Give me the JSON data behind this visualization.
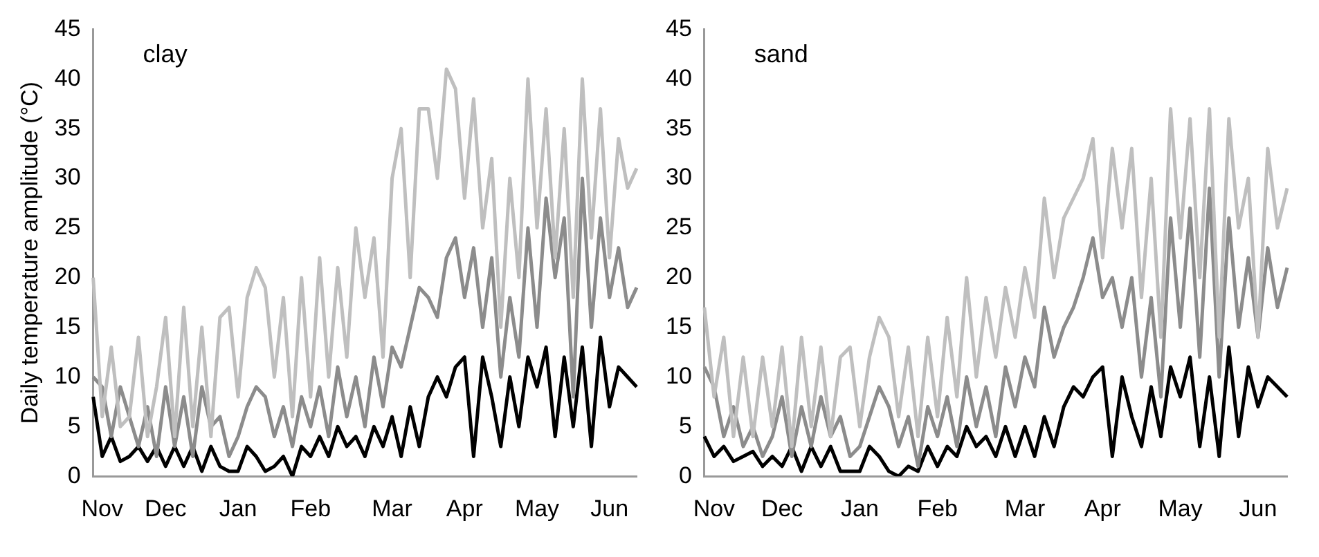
{
  "chart_data": [
    {
      "type": "line",
      "annotations": [
        "clay"
      ],
      "ylabel": "Daily temperature amplitude (°C)",
      "categories": [
        null,
        "Nov",
        null,
        null,
        null,
        null,
        null,
        null,
        "Dec",
        null,
        null,
        null,
        null,
        null,
        null,
        null,
        "Jan",
        null,
        null,
        null,
        null,
        null,
        null,
        null,
        "Feb",
        null,
        null,
        null,
        null,
        null,
        null,
        null,
        null,
        "Mar",
        null,
        null,
        null,
        null,
        null,
        null,
        null,
        "Apr",
        null,
        null,
        null,
        null,
        null,
        null,
        null,
        "May",
        null,
        null,
        null,
        null,
        null,
        null,
        null,
        "Jun",
        null,
        null,
        null
      ],
      "ylim": [
        0,
        45
      ],
      "yticks": [
        0,
        5,
        10,
        15,
        20,
        25,
        30,
        35,
        40,
        45
      ],
      "grid": false,
      "legend": false,
      "marker": "none",
      "line_style": "solid",
      "series": [
        {
          "color": "#bfbfbf",
          "values": [
            20,
            6,
            13,
            5,
            6,
            14,
            4,
            9,
            16,
            4,
            17,
            5,
            15,
            4,
            16,
            17,
            8,
            18,
            21,
            19,
            10,
            18,
            6,
            20,
            8,
            22,
            10,
            21,
            12,
            25,
            18,
            24,
            12,
            30,
            35,
            20,
            37,
            37,
            30,
            41,
            39,
            28,
            38,
            25,
            32,
            15,
            30,
            20,
            40,
            25,
            37,
            22,
            35,
            18,
            40,
            24,
            37,
            22,
            34,
            29,
            31
          ]
        },
        {
          "color": "#8c8c8c",
          "values": [
            10,
            9,
            4,
            9,
            6,
            3,
            7,
            2,
            9,
            3,
            8,
            2,
            9,
            5,
            6,
            2,
            4,
            7,
            9,
            8,
            4,
            7,
            3,
            8,
            5,
            9,
            4,
            11,
            6,
            10,
            5,
            12,
            7,
            13,
            11,
            15,
            19,
            18,
            16,
            22,
            24,
            18,
            23,
            15,
            22,
            10,
            18,
            12,
            25,
            15,
            28,
            20,
            26,
            8,
            30,
            15,
            26,
            18,
            23,
            17,
            19
          ]
        },
        {
          "color": "#000000",
          "values": [
            8,
            2,
            4,
            1.5,
            2,
            3,
            1.5,
            3,
            1,
            3,
            1,
            3,
            0.5,
            3,
            1,
            0.5,
            0.5,
            3,
            2,
            0.5,
            1,
            2,
            0,
            3,
            2,
            4,
            2,
            5,
            3,
            4,
            2,
            5,
            3,
            6,
            2,
            7,
            3,
            8,
            10,
            8,
            11,
            12,
            2,
            12,
            8,
            3,
            10,
            5,
            12,
            9,
            13,
            4,
            12,
            5,
            13,
            3,
            14,
            7,
            11,
            10,
            9
          ]
        }
      ]
    },
    {
      "type": "line",
      "annotations": [
        "sand"
      ],
      "categories": [
        null,
        "Nov",
        null,
        null,
        null,
        null,
        null,
        null,
        "Dec",
        null,
        null,
        null,
        null,
        null,
        null,
        null,
        "Jan",
        null,
        null,
        null,
        null,
        null,
        null,
        null,
        "Feb",
        null,
        null,
        null,
        null,
        null,
        null,
        null,
        null,
        "Mar",
        null,
        null,
        null,
        null,
        null,
        null,
        null,
        "Apr",
        null,
        null,
        null,
        null,
        null,
        null,
        null,
        "May",
        null,
        null,
        null,
        null,
        null,
        null,
        null,
        "Jun",
        null,
        null,
        null
      ],
      "ylim": [
        0,
        45
      ],
      "yticks": [
        0,
        5,
        10,
        15,
        20,
        25,
        30,
        35,
        40,
        45
      ],
      "grid": false,
      "legend": false,
      "marker": "none",
      "line_style": "solid",
      "series": [
        {
          "color": "#bfbfbf",
          "values": [
            17,
            8,
            14,
            4,
            12,
            4,
            12,
            5,
            13,
            3,
            14,
            5,
            13,
            4,
            12,
            13,
            5,
            12,
            16,
            14,
            6,
            13,
            4,
            14,
            6,
            16,
            8,
            20,
            10,
            18,
            12,
            19,
            14,
            21,
            16,
            28,
            20,
            26,
            28,
            30,
            34,
            22,
            33,
            25,
            33,
            18,
            30,
            14,
            37,
            24,
            36,
            20,
            37,
            14,
            36,
            25,
            30,
            14,
            33,
            25,
            29
          ]
        },
        {
          "color": "#8c8c8c",
          "values": [
            11,
            9,
            4,
            7,
            3,
            5,
            2,
            4,
            8,
            2,
            7,
            3,
            8,
            4,
            6,
            2,
            3,
            6,
            9,
            7,
            3,
            6,
            1,
            7,
            4,
            8,
            3,
            10,
            5,
            9,
            4,
            11,
            7,
            12,
            9,
            17,
            12,
            15,
            17,
            20,
            24,
            18,
            20,
            15,
            20,
            10,
            18,
            8,
            26,
            15,
            27,
            12,
            29,
            10,
            26,
            15,
            22,
            14,
            23,
            17,
            21
          ]
        },
        {
          "color": "#000000",
          "values": [
            4,
            2,
            3,
            1.5,
            2,
            2.5,
            1,
            2,
            1,
            3,
            0.5,
            3,
            1,
            3,
            0.5,
            0.5,
            0.5,
            3,
            2,
            0.5,
            0,
            1,
            0.5,
            3,
            1,
            3,
            2,
            5,
            3,
            4,
            2,
            5,
            2,
            5,
            2,
            6,
            3,
            7,
            9,
            8,
            10,
            11,
            2,
            10,
            6,
            3,
            9,
            4,
            11,
            8,
            12,
            3,
            10,
            2,
            13,
            4,
            11,
            7,
            10,
            9,
            8
          ]
        }
      ]
    }
  ]
}
